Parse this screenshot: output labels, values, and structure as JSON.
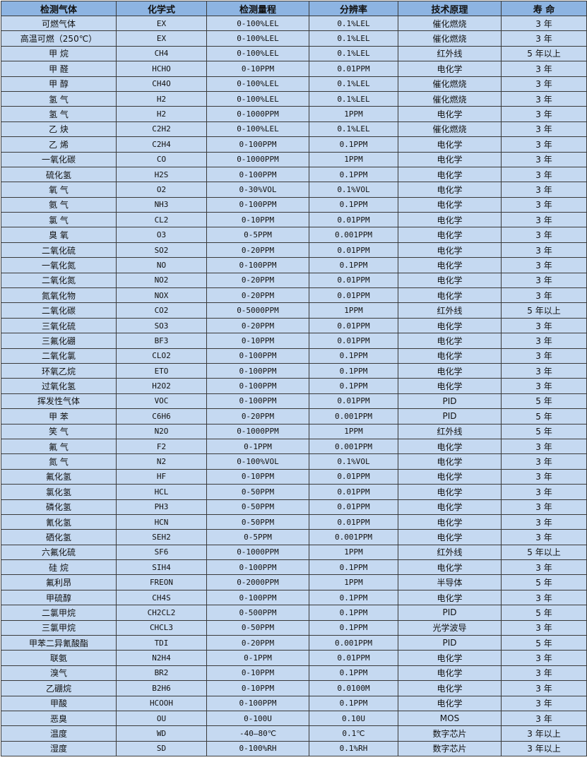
{
  "header": [
    "检测气体",
    "化学式",
    "检测量程",
    "分辨率",
    "技术原理",
    "寿 命"
  ],
  "rows": [
    [
      "可燃气体",
      "EX",
      "0-100%LEL",
      "0.1%LEL",
      "催化燃烧",
      "3 年"
    ],
    [
      "高温可燃（250℃）",
      "EX",
      "0-100%LEL",
      "0.1%LEL",
      "催化燃烧",
      "3 年"
    ],
    [
      "甲 烷",
      "CH4",
      "0-100%LEL",
      "0.1%LEL",
      "红外线",
      "5 年以上"
    ],
    [
      "甲 醛",
      "HCHO",
      "0-10PPM",
      "0.01PPM",
      "电化学",
      "3 年"
    ],
    [
      "甲 醇",
      "CH4O",
      "0-100%LEL",
      "0.1%LEL",
      "催化燃烧",
      "3 年"
    ],
    [
      "氢 气",
      "H2",
      "0-100%LEL",
      "0.1%LEL",
      "催化燃烧",
      "3 年"
    ],
    [
      "氢 气",
      "H2",
      "0-1000PPM",
      "1PPM",
      "电化学",
      "3 年"
    ],
    [
      "乙 炔",
      "C2H2",
      "0-100%LEL",
      "0.1%LEL",
      "催化燃烧",
      "3 年"
    ],
    [
      "乙 烯",
      "C2H4",
      "0-100PPM",
      "0.1PPM",
      "电化学",
      "3 年"
    ],
    [
      "一氧化碳",
      "CO",
      "0-1000PPM",
      "1PPM",
      "电化学",
      "3 年"
    ],
    [
      "硫化氢",
      "H2S",
      "0-100PPM",
      "0.1PPM",
      "电化学",
      "3 年"
    ],
    [
      "氧 气",
      "O2",
      "0-30%VOL",
      "0.1%VOL",
      "电化学",
      "3 年"
    ],
    [
      "氨 气",
      "NH3",
      "0-100PPM",
      "0.1PPM",
      "电化学",
      "3 年"
    ],
    [
      "氯 气",
      "CL2",
      "0-10PPM",
      "0.01PPM",
      "电化学",
      "3 年"
    ],
    [
      "臭 氧",
      "O3",
      "0-5PPM",
      "0.001PPM",
      "电化学",
      "3 年"
    ],
    [
      "二氧化硫",
      "SO2",
      "0-20PPM",
      "0.01PPM",
      "电化学",
      "3 年"
    ],
    [
      "一氧化氮",
      "NO",
      "0-100PPM",
      "0.1PPM",
      "电化学",
      "3 年"
    ],
    [
      "二氧化氮",
      "NO2",
      "0-20PPM",
      "0.01PPM",
      "电化学",
      "3 年"
    ],
    [
      "氮氧化物",
      "NOX",
      "0-20PPM",
      "0.01PPM",
      "电化学",
      "3 年"
    ],
    [
      "二氧化碳",
      "CO2",
      "0-5000PPM",
      "1PPM",
      "红外线",
      "5 年以上"
    ],
    [
      "三氧化硫",
      "SO3",
      "0-20PPM",
      "0.01PPM",
      "电化学",
      "3 年"
    ],
    [
      "三氟化硼",
      "BF3",
      "0-10PPM",
      "0.01PPM",
      "电化学",
      "3 年"
    ],
    [
      "二氧化氯",
      "CLO2",
      "0-100PPM",
      "0.1PPM",
      "电化学",
      "3 年"
    ],
    [
      "环氧乙烷",
      "ETO",
      "0-100PPM",
      "0.1PPM",
      "电化学",
      "3 年"
    ],
    [
      "过氧化氢",
      "H2O2",
      "0-100PPM",
      "0.1PPM",
      "电化学",
      "3 年"
    ],
    [
      "挥发性气体",
      "VOC",
      "0-100PPM",
      "0.01PPM",
      "PID",
      "5 年"
    ],
    [
      "甲 苯",
      "C6H6",
      "0-20PPM",
      "0.001PPM",
      "PID",
      "5 年"
    ],
    [
      "笑 气",
      "N2O",
      "0-1000PPM",
      "1PPM",
      "红外线",
      "5 年"
    ],
    [
      "氟 气",
      "F2",
      "0-1PPM",
      "0.001PPM",
      "电化学",
      "3 年"
    ],
    [
      "氮 气",
      "N2",
      "0-100%VOL",
      "0.1%VOL",
      "电化学",
      "3 年"
    ],
    [
      "氟化氢",
      "HF",
      "0-10PPM",
      "0.01PPM",
      "电化学",
      "3 年"
    ],
    [
      "氯化氢",
      "HCL",
      "0-50PPM",
      "0.01PPM",
      "电化学",
      "3 年"
    ],
    [
      "磷化氢",
      "PH3",
      "0-50PPM",
      "0.01PPM",
      "电化学",
      "3 年"
    ],
    [
      "氰化氢",
      "HCN",
      "0-50PPM",
      "0.01PPM",
      "电化学",
      "3 年"
    ],
    [
      "硒化氢",
      "SEH2",
      "0-5PPM",
      "0.001PPM",
      "电化学",
      "3 年"
    ],
    [
      "六氟化硫",
      "SF6",
      "0-1000PPM",
      "1PPM",
      "红外线",
      "5 年以上"
    ],
    [
      "硅 烷",
      "SIH4",
      "0-100PPM",
      "0.1PPM",
      "电化学",
      "3 年"
    ],
    [
      "氟利昂",
      "FREON",
      "0-2000PPM",
      "1PPM",
      "半导体",
      "5 年"
    ],
    [
      "甲硫醇",
      "CH4S",
      "0-100PPM",
      "0.1PPM",
      "电化学",
      "3 年"
    ],
    [
      "二氯甲烷",
      "CH2CL2",
      "0-500PPM",
      "0.1PPM",
      "PID",
      "5 年"
    ],
    [
      "三氯甲烷",
      "CHCL3",
      "0-50PPM",
      "0.1PPM",
      "光学波导",
      "3 年"
    ],
    [
      "甲苯二异氰酸酯",
      "TDI",
      "0-20PPM",
      "0.001PPM",
      "PID",
      "5 年"
    ],
    [
      "联氨",
      "N2H4",
      "0-1PPM",
      "0.01PPM",
      "电化学",
      "3 年"
    ],
    [
      "溴气",
      "BR2",
      "0-10PPM",
      "0.1PPM",
      "电化学",
      "3 年"
    ],
    [
      "乙硼烷",
      "B2H6",
      "0-10PPM",
      "0.0100M",
      "电化学",
      "3 年"
    ],
    [
      "甲酸",
      "HCOOH",
      "0-100PPM",
      "0.1PPM",
      "电化学",
      "3 年"
    ],
    [
      "恶臭",
      "OU",
      "0-100U",
      "0.10U",
      "MOS",
      "3 年"
    ],
    [
      "温度",
      "WD",
      "-40—80℃",
      "0.1℃",
      "数字芯片",
      "3 年以上"
    ],
    [
      "湿度",
      "SD",
      "0-100%RH",
      "0.1%RH",
      "数字芯片",
      "3 年以上"
    ]
  ],
  "colors": {
    "header_bg": "#8db4e2",
    "cell_bg": "#c5d9f1",
    "border": "#3a3a3a"
  }
}
